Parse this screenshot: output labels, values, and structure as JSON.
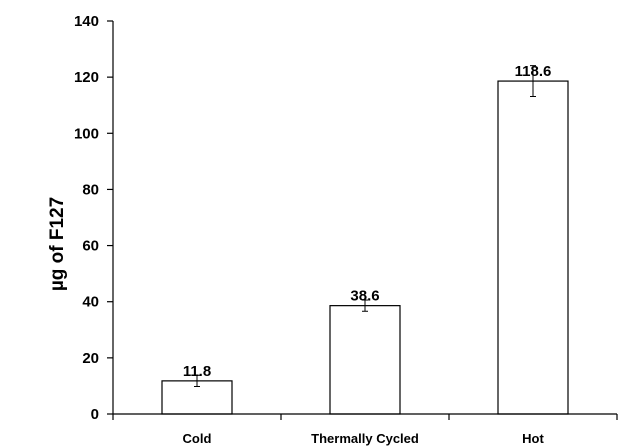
{
  "chart_data": {
    "type": "bar",
    "title": "",
    "xlabel": "",
    "ylabel": "µg of F127",
    "categories": [
      "Cold",
      "Thermally Cycled",
      "Hot"
    ],
    "values": [
      11.8,
      38.6,
      118.6
    ],
    "data_labels": [
      "11.8",
      "38.6",
      "118.6"
    ],
    "error": [
      2.0,
      2.0,
      5.5
    ],
    "ylim": [
      0,
      140
    ],
    "yticks": [
      0,
      20,
      40,
      60,
      80,
      100,
      120,
      140
    ],
    "grid": false,
    "legend": "none",
    "bar_fill": "#ffffff",
    "bar_stroke": "#000000"
  }
}
